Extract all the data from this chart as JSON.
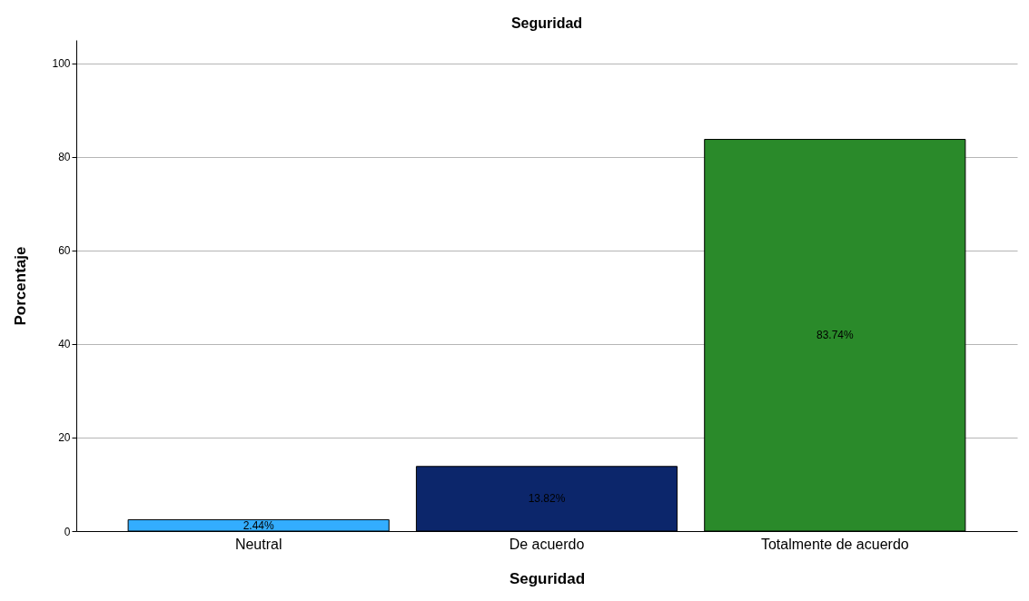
{
  "chart_data": {
    "type": "bar",
    "title": "Seguridad",
    "xlabel": "Seguridad",
    "ylabel": "Porcentaje",
    "categories": [
      "Neutral",
      "De acuerdo",
      "Totalmente de acuerdo"
    ],
    "values": [
      2.44,
      13.82,
      83.74
    ],
    "colors": [
      "#33adff",
      "#0c266b",
      "#2a8a2a"
    ],
    "value_labels": [
      "2.44%",
      "13.82%",
      "83.74%"
    ],
    "ylim": [
      0,
      105
    ],
    "yticks": [
      0,
      20,
      40,
      60,
      80,
      100
    ],
    "grid": "y"
  }
}
